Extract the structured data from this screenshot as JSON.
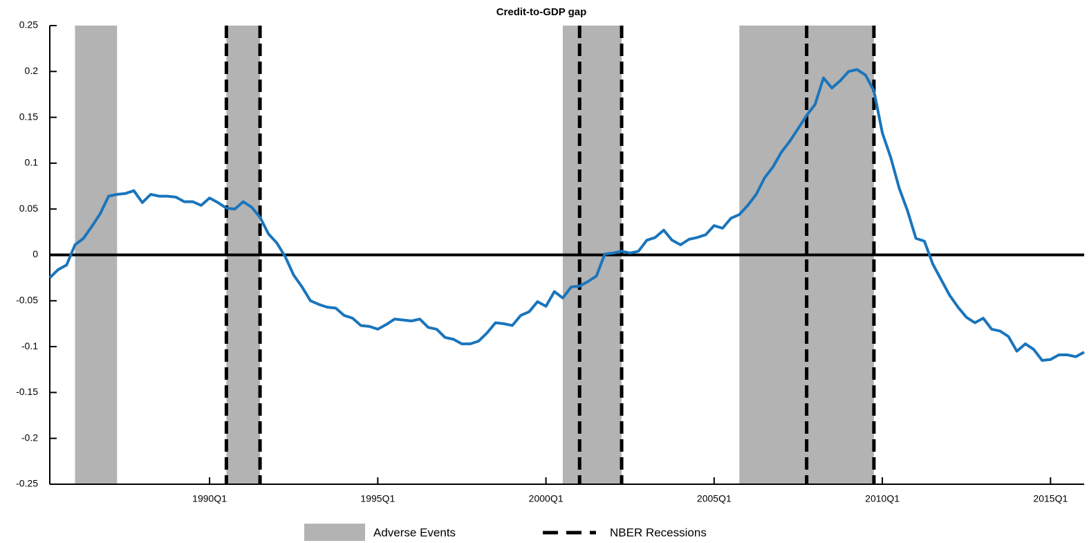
{
  "chart_data": {
    "type": "line",
    "title": "Credit-to-GDP gap",
    "color": "#1a75bc",
    "x": [
      "1985Q2",
      "1985Q3",
      "1985Q4",
      "1986Q1",
      "1986Q2",
      "1986Q3",
      "1986Q4",
      "1987Q1",
      "1987Q2",
      "1987Q3",
      "1987Q4",
      "1988Q1",
      "1988Q2",
      "1988Q3",
      "1988Q4",
      "1989Q1",
      "1989Q2",
      "1989Q3",
      "1989Q4",
      "1990Q1",
      "1990Q2",
      "1990Q3",
      "1990Q4",
      "1991Q1",
      "1991Q2",
      "1991Q3",
      "1991Q4",
      "1992Q1",
      "1992Q2",
      "1992Q3",
      "1992Q4",
      "1993Q1",
      "1993Q2",
      "1993Q3",
      "1993Q4",
      "1994Q1",
      "1994Q2",
      "1994Q3",
      "1994Q4",
      "1995Q1",
      "1995Q2",
      "1995Q3",
      "1995Q4",
      "1996Q1",
      "1996Q2",
      "1996Q3",
      "1996Q4",
      "1997Q1",
      "1997Q2",
      "1997Q3",
      "1997Q4",
      "1998Q1",
      "1998Q2",
      "1998Q3",
      "1998Q4",
      "1999Q1",
      "1999Q2",
      "1999Q3",
      "1999Q4",
      "2000Q1",
      "2000Q2",
      "2000Q3",
      "2000Q4",
      "2001Q1",
      "2001Q2",
      "2001Q3",
      "2001Q4",
      "2002Q1",
      "2002Q2",
      "2002Q3",
      "2002Q4",
      "2003Q1",
      "2003Q2",
      "2003Q3",
      "2003Q4",
      "2004Q1",
      "2004Q2",
      "2004Q3",
      "2004Q4",
      "2005Q1",
      "2005Q2",
      "2005Q3",
      "2005Q4",
      "2006Q1",
      "2006Q2",
      "2006Q3",
      "2006Q4",
      "2007Q1",
      "2007Q2",
      "2007Q3",
      "2007Q4",
      "2008Q1",
      "2008Q2",
      "2008Q3",
      "2008Q4",
      "2009Q1",
      "2009Q2",
      "2009Q3",
      "2009Q4",
      "2010Q1",
      "2010Q2",
      "2010Q3",
      "2010Q4",
      "2011Q1",
      "2011Q2",
      "2011Q3",
      "2011Q4",
      "2012Q1",
      "2012Q2",
      "2012Q3",
      "2012Q4",
      "2013Q1",
      "2013Q2",
      "2013Q3",
      "2013Q4",
      "2014Q1",
      "2014Q2",
      "2014Q3",
      "2014Q4",
      "2015Q1",
      "2015Q2",
      "2015Q3",
      "2015Q4",
      "2016Q1"
    ],
    "values": [
      -0.025,
      -0.016,
      -0.011,
      0.011,
      0.018,
      0.031,
      0.045,
      0.064,
      0.066,
      0.067,
      0.07,
      0.057,
      0.066,
      0.064,
      0.064,
      0.063,
      0.058,
      0.058,
      0.054,
      0.062,
      0.057,
      0.051,
      0.05,
      0.058,
      0.052,
      0.041,
      0.023,
      0.013,
      -0.002,
      -0.022,
      -0.035,
      -0.05,
      -0.054,
      -0.057,
      -0.058,
      -0.066,
      -0.069,
      -0.077,
      -0.078,
      -0.081,
      -0.076,
      -0.07,
      -0.071,
      -0.072,
      -0.07,
      -0.079,
      -0.081,
      -0.09,
      -0.092,
      -0.097,
      -0.097,
      -0.094,
      -0.085,
      -0.074,
      -0.075,
      -0.077,
      -0.066,
      -0.062,
      -0.051,
      -0.056,
      -0.04,
      -0.047,
      -0.035,
      -0.034,
      -0.029,
      -0.023,
      0.001,
      0.002,
      0.004,
      0.002,
      0.004,
      0.016,
      0.019,
      0.027,
      0.016,
      0.011,
      0.017,
      0.019,
      0.022,
      0.032,
      0.029,
      0.04,
      0.044,
      0.054,
      0.066,
      0.084,
      0.096,
      0.112,
      0.124,
      0.138,
      0.152,
      0.164,
      0.193,
      0.182,
      0.19,
      0.2,
      0.202,
      0.196,
      0.179,
      0.133,
      0.106,
      0.073,
      0.048,
      0.018,
      0.015,
      -0.01,
      -0.027,
      -0.044,
      -0.057,
      -0.068,
      -0.074,
      -0.069,
      -0.081,
      -0.083,
      -0.089,
      -0.105,
      -0.097,
      -0.103,
      -0.115,
      -0.114,
      -0.109,
      -0.109,
      -0.111,
      -0.106
    ],
    "xlim": [
      "1985Q2",
      "2016Q1"
    ],
    "xticks": [
      "1990Q1",
      "1995Q1",
      "2000Q1",
      "2005Q1",
      "2010Q1",
      "2015Q1"
    ],
    "ylim": [
      -0.25,
      0.25
    ],
    "yticks": [
      -0.25,
      -0.2,
      -0.15,
      -0.1,
      -0.05,
      0,
      0.05,
      0.1,
      0.15,
      0.2,
      0.25
    ],
    "shaded_regions": {
      "name": "Adverse Events",
      "color": "#b3b3b3",
      "ranges": [
        [
          "1986Q1",
          "1987Q2"
        ],
        [
          "1990Q3",
          "1991Q3"
        ],
        [
          "2000Q3",
          "2002Q2"
        ],
        [
          "2005Q4",
          "2009Q4"
        ]
      ]
    },
    "vlines": {
      "name": "NBER Recessions",
      "color": "#000000",
      "x": [
        "1990Q3",
        "1991Q3",
        "2001Q1",
        "2002Q2",
        "2007Q4",
        "2009Q4"
      ]
    }
  }
}
